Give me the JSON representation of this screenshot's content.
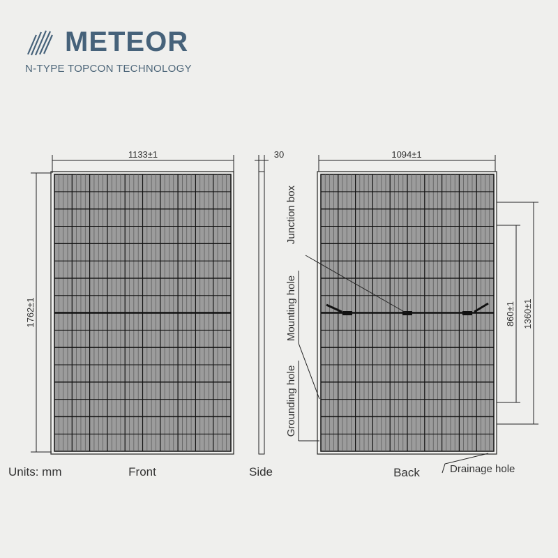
{
  "logo": {
    "brand": "METEOR",
    "tagline": "N-TYPE TOPCON TECHNOLOGY",
    "color": "#46627a"
  },
  "dimensions": {
    "front_width": "1133±1",
    "front_height": "1762±1",
    "side_thickness": "30",
    "back_width": "1094±1",
    "mount_spacing_inner": "860±1",
    "mount_spacing_outer": "1360±1"
  },
  "callouts": {
    "junction_box": "Junction box",
    "mounting_hole": "Mounting hole",
    "grounding_hole": "Grounding hole",
    "drainage_hole": "Drainage hole"
  },
  "labels": {
    "units": "Units: mm",
    "front": "Front",
    "side": "Side",
    "back": "Back"
  },
  "colors": {
    "background": "#efefed",
    "cell": "#9c9c9c",
    "line": "#111111"
  }
}
